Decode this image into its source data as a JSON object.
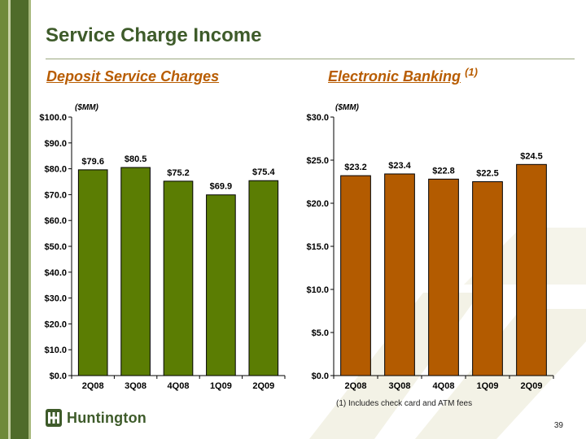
{
  "title": "Service Charge Income",
  "left": {
    "heading": "Deposit Service Charges",
    "unit": "($MM)"
  },
  "right": {
    "heading": "Electronic Banking",
    "heading_note": "(1)",
    "unit": "($MM)"
  },
  "footnote": "(1) Includes check card and ATM fees",
  "page_number": "39",
  "logo": {
    "text": "Huntington",
    "icon": "huntington-logo-icon"
  },
  "colors": {
    "title": "#3e5b2a",
    "subtitle": "#b85c00",
    "left_bar": "#5b7d03",
    "right_bar": "#b35b00"
  },
  "chart_data": [
    {
      "type": "bar",
      "title": "Deposit Service Charges",
      "ylabel": "($MM)",
      "categories": [
        "2Q08",
        "3Q08",
        "4Q08",
        "1Q09",
        "2Q09"
      ],
      "values": [
        79.6,
        80.5,
        75.2,
        69.9,
        75.4
      ],
      "data_labels": [
        "$79.6",
        "$80.5",
        "$75.2",
        "$69.9",
        "$75.4"
      ],
      "ylim": [
        0,
        100
      ],
      "yticks": [
        "$0.0",
        "$10.0",
        "$20.0",
        "$30.0",
        "$40.0",
        "$50.0",
        "$60.0",
        "$70.0",
        "$80.0",
        "$90.0",
        "$100.0"
      ],
      "grid": false,
      "color": "#5b7d03"
    },
    {
      "type": "bar",
      "title": "Electronic Banking (1)",
      "ylabel": "($MM)",
      "categories": [
        "2Q08",
        "3Q08",
        "4Q08",
        "1Q09",
        "2Q09"
      ],
      "values": [
        23.2,
        23.4,
        22.8,
        22.5,
        24.5
      ],
      "data_labels": [
        "$23.2",
        "$23.4",
        "$22.8",
        "$22.5",
        "$24.5"
      ],
      "ylim": [
        0,
        30
      ],
      "yticks": [
        "$0.0",
        "$5.0",
        "$10.0",
        "$15.0",
        "$20.0",
        "$25.0",
        "$30.0"
      ],
      "grid": false,
      "color": "#b35b00"
    }
  ]
}
